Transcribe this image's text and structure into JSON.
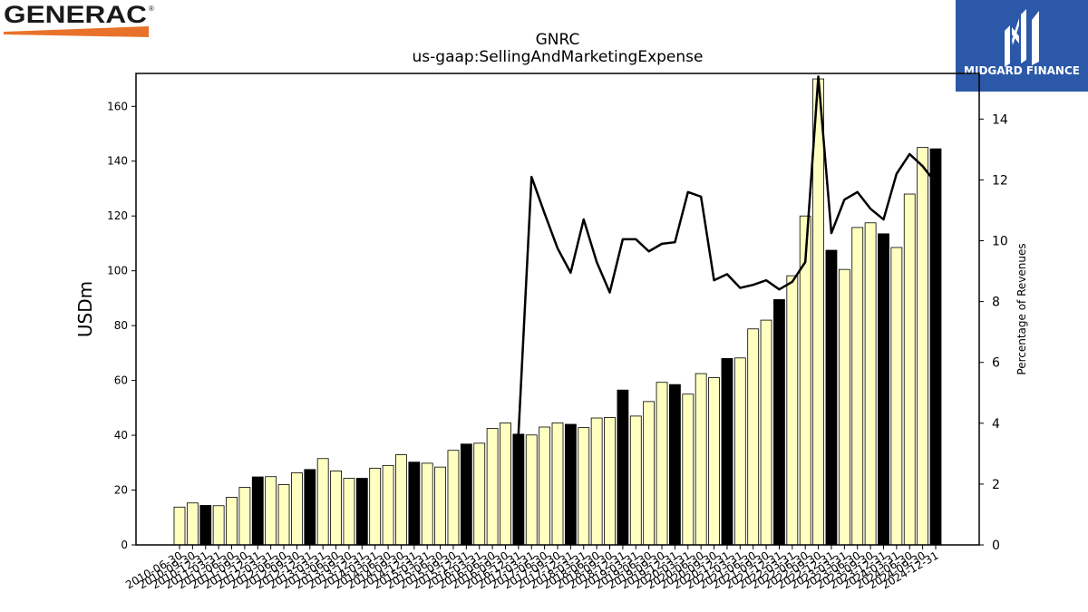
{
  "brand_left": {
    "name": "GENERAC",
    "mark": "®"
  },
  "brand_right": {
    "name": "MIDGARD FINANCE",
    "icon": "midgard-m-logo"
  },
  "colors": {
    "bar_default": "#ffffc0",
    "bar_highlight": "#000000",
    "line": "#000000"
  },
  "chart_data": {
    "type": "bar",
    "title": "GNRC",
    "subtitle": "us-gaap:SellingAndMarketingExpense",
    "ylabel": "USDm",
    "y2label": "Percentage of Revenues",
    "ylim": [
      0,
      172
    ],
    "y2lim": [
      0,
      15.5
    ],
    "yticks": [
      0,
      20,
      40,
      60,
      80,
      100,
      120,
      140,
      160
    ],
    "y2ticks": [
      0,
      2,
      4,
      6,
      8,
      10,
      12,
      14
    ],
    "categories": [
      "2010-06-30",
      "2010-09-30",
      "2010-12-31",
      "2011-03-31",
      "2011-06-30",
      "2011-09-30",
      "2011-12-31",
      "2012-03-31",
      "2012-06-30",
      "2012-09-30",
      "2012-12-31",
      "2013-03-31",
      "2013-06-30",
      "2013-09-30",
      "2013-12-31",
      "2014-03-31",
      "2014-06-30",
      "2014-09-30",
      "2014-12-31",
      "2015-03-31",
      "2015-06-30",
      "2015-09-30",
      "2015-12-31",
      "2016-03-31",
      "2016-06-30",
      "2016-09-30",
      "2016-12-31",
      "2017-03-31",
      "2017-06-30",
      "2017-09-30",
      "2017-12-31",
      "2018-03-31",
      "2018-06-30",
      "2018-09-30",
      "2018-12-31",
      "2019-03-31",
      "2019-06-30",
      "2019-09-30",
      "2019-12-31",
      "2020-03-31",
      "2020-06-30",
      "2020-09-30",
      "2020-12-31",
      "2021-03-31",
      "2021-06-30",
      "2021-09-30",
      "2021-12-31",
      "2022-03-31",
      "2022-06-30",
      "2022-09-30",
      "2022-12-31",
      "2023-03-31",
      "2023-06-30",
      "2023-09-30",
      "2023-12-31",
      "2024-03-31",
      "2024-06-30",
      "2024-09-30",
      "2024-12-31"
    ],
    "highlight": [
      2,
      6,
      10,
      14,
      18,
      22,
      26,
      30,
      34,
      38,
      42,
      46,
      50,
      54,
      58
    ],
    "series": [
      {
        "name": "",
        "type": "bar",
        "values": [
          13.8,
          15.3,
          14.4,
          14.3,
          17.4,
          21.0,
          24.8,
          24.9,
          22.0,
          26.3,
          27.5,
          31.5,
          27.0,
          24.3,
          24.3,
          28.0,
          29.0,
          32.9,
          30.2,
          29.8,
          28.4,
          34.5,
          36.8,
          37.1,
          42.5,
          44.5,
          40.4,
          40.1,
          43.0,
          44.5,
          44.0,
          42.8,
          46.3,
          46.5,
          56.5,
          47.0,
          52.3,
          59.3,
          58.5,
          55.0,
          62.5,
          61.0,
          68.0,
          68.2,
          78.8,
          82.0,
          89.5,
          98.2,
          120.0,
          170.0,
          107.5,
          100.5,
          115.8,
          117.5,
          113.5,
          108.5,
          128.0,
          145.0,
          144.5
        ]
      },
      {
        "name": "",
        "type": "line",
        "axis": "right",
        "values": [
          null,
          null,
          null,
          null,
          null,
          null,
          null,
          null,
          null,
          null,
          null,
          null,
          null,
          null,
          null,
          null,
          null,
          null,
          null,
          null,
          null,
          null,
          null,
          null,
          null,
          null,
          3.65,
          12.1,
          10.9,
          9.75,
          8.95,
          10.7,
          9.3,
          8.3,
          10.05,
          10.05,
          9.65,
          9.9,
          9.95,
          11.6,
          11.45,
          8.7,
          8.9,
          8.45,
          8.55,
          8.7,
          8.4,
          8.65,
          9.3,
          15.4,
          10.25,
          11.35,
          11.6,
          11.05,
          10.7,
          12.2,
          12.85,
          12.45,
          11.9
        ]
      }
    ]
  }
}
